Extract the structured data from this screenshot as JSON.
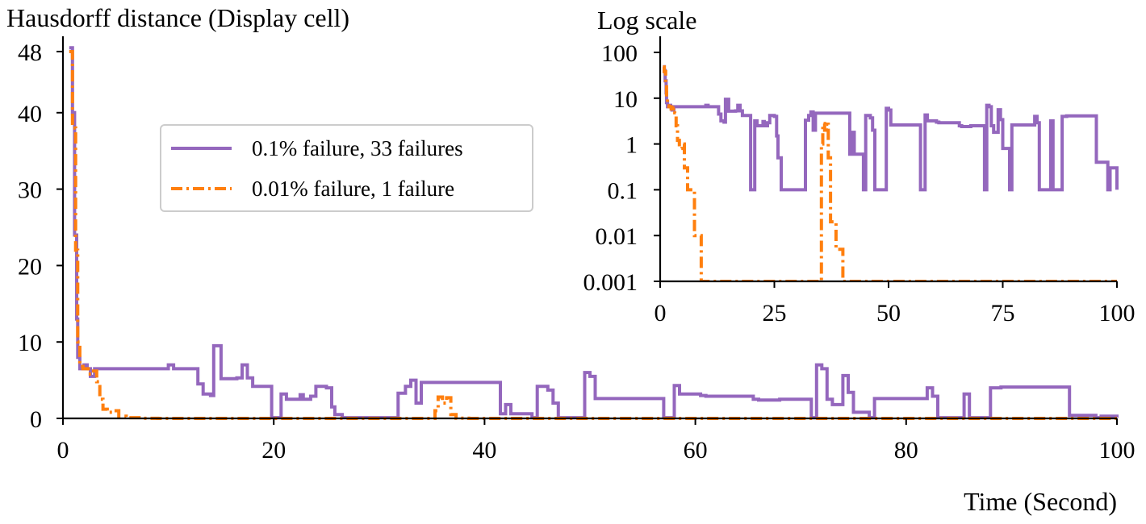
{
  "chart_data": [
    {
      "type": "line",
      "title": "",
      "ylabel": "Hausdorff distance (Display cell)",
      "xlabel": "Time (Second)",
      "xlim": [
        0,
        100
      ],
      "ylim": [
        0,
        50
      ],
      "xticks": [
        "0",
        "20",
        "40",
        "60",
        "80",
        "100"
      ],
      "yticks": [
        "0",
        "10",
        "20",
        "30",
        "40",
        "48"
      ],
      "legend_position": "upper-left-center",
      "grid": false,
      "series": [
        {
          "name": "0.1% failure, 33 failures",
          "color": "#9467bd",
          "style": "solid",
          "x": [
            0.6,
            0.9,
            1.1,
            1.3,
            1.4,
            1.6,
            2.0,
            2.3,
            2.6,
            3.0,
            3.8,
            9.0,
            10.0,
            10.5,
            12.2,
            12.8,
            13.3,
            14.0,
            14.3,
            15.0,
            16.5,
            17.0,
            17.5,
            18.0,
            19.8,
            20.7,
            21.2,
            22.5,
            22.8,
            23.5,
            24.0,
            25.0,
            25.5,
            25.8,
            26.5,
            31.8,
            32.5,
            33.0,
            33.5,
            34.0,
            35.0,
            37.0,
            38.0,
            41.5,
            42.0,
            42.5,
            44.5,
            45.0,
            46.0,
            46.5,
            47.0,
            49.5,
            50.0,
            50.5,
            56.5,
            57.0,
            58.0,
            58.5,
            60.5,
            61.0,
            65.5,
            66.0,
            68.0,
            71.0,
            71.5,
            72.0,
            72.5,
            73.0,
            74.0,
            74.5,
            75.0,
            76.5,
            77.0,
            82.0,
            82.5,
            83.0,
            85.5,
            86.0,
            87.5,
            88.0,
            89.0,
            95.0,
            95.5,
            98.0,
            98.5,
            100.0
          ],
          "y": [
            48.5,
            40,
            24,
            13,
            8,
            6.5,
            7,
            6.5,
            5.5,
            6.5,
            6.5,
            6.5,
            7,
            6.5,
            6.5,
            4.5,
            3.2,
            3,
            9.5,
            5.2,
            5.3,
            7,
            5.3,
            4.2,
            0.1,
            3.2,
            2.5,
            3.1,
            2.5,
            2.9,
            4.2,
            4.0,
            1.5,
            0.5,
            0.1,
            3.3,
            4.2,
            5.0,
            2.0,
            4.7,
            4.7,
            4.7,
            4.7,
            0.6,
            1.8,
            0.6,
            0.1,
            4.2,
            3.7,
            2.0,
            0.1,
            6.0,
            5.5,
            2.6,
            2.6,
            0.1,
            4.3,
            3.2,
            3.0,
            2.9,
            2.5,
            2.4,
            2.5,
            0.1,
            7.0,
            6.5,
            2.5,
            1.8,
            5.6,
            3.4,
            0.8,
            0.1,
            2.6,
            4.0,
            2.9,
            0.1,
            3.2,
            0.1,
            0.1,
            4.0,
            4.1,
            4.1,
            0.4,
            0.1,
            0.3,
            0.1
          ]
        },
        {
          "name": "0.01% failure, 1 failure",
          "color": "#ff7f0e",
          "style": "dashdot",
          "x": [
            0.6,
            0.9,
            1.2,
            1.4,
            1.6,
            1.9,
            2.4,
            2.9,
            3.2,
            3.5,
            3.8,
            4.2,
            4.8,
            5.3,
            6.0,
            7.5,
            9.0,
            35.0,
            35.3,
            35.6,
            36.0,
            36.4,
            36.8,
            37.3,
            38.5,
            40.0,
            100.0
          ],
          "y": [
            48,
            38,
            22,
            10,
            6.8,
            6.5,
            5.8,
            6.2,
            4.8,
            2.5,
            1.2,
            0.8,
            1.0,
            0.3,
            0.1,
            0.01,
            0.001,
            0.001,
            1.0,
            2.8,
            2.0,
            2.7,
            0.5,
            0.02,
            0.005,
            0.001,
            0.001
          ]
        }
      ]
    },
    {
      "type": "line",
      "title": "Log scale",
      "xlim": [
        0,
        100
      ],
      "ylim": [
        0.001,
        100
      ],
      "yscale": "log",
      "xticks": [
        "0",
        "25",
        "50",
        "75",
        "100"
      ],
      "yticks": [
        "0.001",
        "0.01",
        "0.1",
        "1",
        "10",
        "100"
      ],
      "grid": false,
      "series_ref": "same as main chart"
    }
  ]
}
